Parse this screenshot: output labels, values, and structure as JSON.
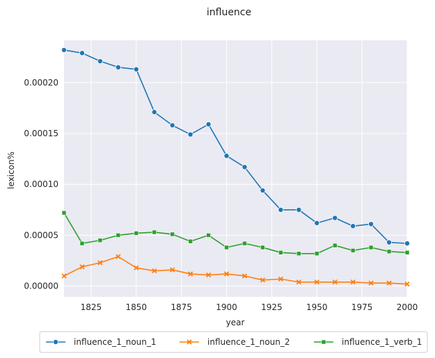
{
  "chart_data": {
    "type": "line",
    "title": "influence",
    "xlabel": "year",
    "ylabel": "lexicon%",
    "xlim": [
      1810,
      2000
    ],
    "ylim": [
      -1.05e-05,
      0.0002415
    ],
    "grid": true,
    "legend_position": "bottom-center",
    "x_ticks": [
      1825,
      1850,
      1875,
      1900,
      1925,
      1950,
      1975,
      2000
    ],
    "x_tick_labels": [
      "1825",
      "1850",
      "1875",
      "1900",
      "1925",
      "1950",
      "1975",
      "2000"
    ],
    "y_ticks": [
      0,
      5e-05,
      0.0001,
      0.00015,
      0.0002
    ],
    "y_tick_labels": [
      "0.00000",
      "0.00005",
      "0.00010",
      "0.00015",
      "0.00020"
    ],
    "x": [
      1810,
      1820,
      1830,
      1840,
      1850,
      1860,
      1870,
      1880,
      1890,
      1900,
      1910,
      1920,
      1930,
      1940,
      1950,
      1960,
      1970,
      1980,
      1990,
      2000
    ],
    "series": [
      {
        "name": "influence_1_noun_1",
        "color": "#1f77b4",
        "marker": "circle",
        "values": [
          0.000232,
          0.000229,
          0.000221,
          0.000215,
          0.000213,
          0.000171,
          0.000158,
          0.000149,
          0.000159,
          0.000128,
          0.000117,
          9.4e-05,
          7.5e-05,
          7.5e-05,
          6.2e-05,
          6.7e-05,
          5.9e-05,
          6.1e-05,
          4.3e-05,
          4.2e-05
        ]
      },
      {
        "name": "influence_1_noun_2",
        "color": "#ff7f0e",
        "marker": "x",
        "values": [
          1e-05,
          1.9e-05,
          2.3e-05,
          2.9e-05,
          1.8e-05,
          1.5e-05,
          1.6e-05,
          1.2e-05,
          1.1e-05,
          1.2e-05,
          1e-05,
          6e-06,
          7e-06,
          4e-06,
          4e-06,
          4e-06,
          4e-06,
          3e-06,
          3e-06,
          2e-06
        ]
      },
      {
        "name": "influence_1_verb_1",
        "color": "#2ca02c",
        "marker": "square",
        "values": [
          7.2e-05,
          4.2e-05,
          4.5e-05,
          5e-05,
          5.2e-05,
          5.3e-05,
          5.1e-05,
          4.4e-05,
          5e-05,
          3.8e-05,
          4.2e-05,
          3.8e-05,
          3.3e-05,
          3.2e-05,
          3.2e-05,
          4e-05,
          3.5e-05,
          3.8e-05,
          3.4e-05,
          3.3e-05
        ]
      }
    ]
  }
}
